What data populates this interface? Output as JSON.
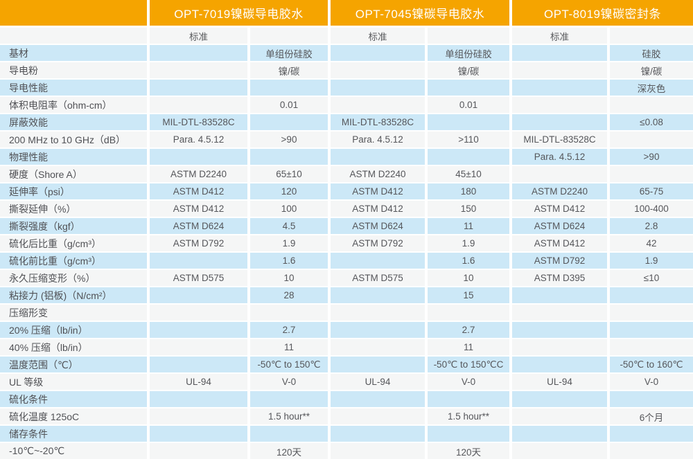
{
  "colors": {
    "header_bg": "#f5a400",
    "header_text": "#ffffff",
    "row_blue": "#cce8f7",
    "row_light": "#f5f6f6",
    "body_text": "#55565a"
  },
  "header": {
    "corner": "",
    "products": [
      "OPT-7019镍碳导电胶水",
      "OPT-7045镍碳导电胶水",
      "OPT-8019镍碳密封条"
    ],
    "subheader": [
      "标准",
      "标准",
      "标准"
    ]
  },
  "rows": [
    {
      "label": "基材",
      "cells": [
        "",
        "单组份硅胶",
        "",
        "单组份硅胶",
        "",
        "硅胶"
      ]
    },
    {
      "label": "导电粉",
      "cells": [
        "",
        "镍/碳",
        "",
        "镍/碳",
        "",
        "镍/碳"
      ]
    },
    {
      "label": "导电性能",
      "cells": [
        "",
        "",
        "",
        "",
        "",
        "深灰色"
      ]
    },
    {
      "label": "体积电阻率（ohm-cm）",
      "cells": [
        "",
        "0.01",
        "",
        "0.01",
        "",
        ""
      ]
    },
    {
      "label": "屏蔽效能",
      "cells": [
        "MIL-DTL-83528C",
        "",
        "MIL-DTL-83528C",
        "",
        "",
        "≤0.08"
      ]
    },
    {
      "label": "200 MHz to 10 GHz（dB）",
      "cells": [
        "Para. 4.5.12",
        ">90",
        "Para. 4.5.12",
        ">110",
        "MIL-DTL-83528C",
        ""
      ]
    },
    {
      "label": "物理性能",
      "cells": [
        "",
        "",
        "",
        "",
        "Para. 4.5.12",
        ">90"
      ]
    },
    {
      "label": "硬度（Shore A）",
      "cells": [
        "ASTM D2240",
        "65±10",
        "ASTM D2240",
        "45±10",
        "",
        ""
      ]
    },
    {
      "label": "延伸率（psi）",
      "cells": [
        "ASTM D412",
        "120",
        "ASTM D412",
        "180",
        "ASTM D2240",
        "65-75"
      ]
    },
    {
      "label": "撕裂延伸（%）",
      "cells": [
        "ASTM D412",
        "100",
        "ASTM D412",
        "150",
        "ASTM D412",
        "100-400"
      ]
    },
    {
      "label": "撕裂强度（kgf）",
      "cells": [
        "ASTM D624",
        "4.5",
        "ASTM D624",
        "11",
        "ASTM D624",
        "2.8"
      ]
    },
    {
      "label": "硫化后比重（g/cm³）",
      "cells": [
        "ASTM D792",
        "1.9",
        "ASTM D792",
        "1.9",
        "ASTM D412",
        "42"
      ]
    },
    {
      "label": "硫化前比重（g/cm³）",
      "cells": [
        "",
        "1.6",
        "",
        "1.6",
        "ASTM D792",
        "1.9"
      ]
    },
    {
      "label": "永久压缩变形（%）",
      "cells": [
        "ASTM D575",
        "10",
        "ASTM D575",
        "10",
        "ASTM D395",
        "≤10"
      ]
    },
    {
      "label": "粘接力 (铝板)（N/cm²）",
      "cells": [
        "",
        "28",
        "",
        "15",
        "",
        ""
      ]
    },
    {
      "label": "压缩形变",
      "cells": [
        "",
        "",
        "",
        "",
        "",
        ""
      ]
    },
    {
      "label": "20% 压缩（lb/in）",
      "cells": [
        "",
        "2.7",
        "",
        "2.7",
        "",
        ""
      ]
    },
    {
      "label": "40% 压缩（lb/in）",
      "cells": [
        "",
        "11",
        "",
        "11",
        "",
        ""
      ]
    },
    {
      "label": "温度范围（℃）",
      "cells": [
        "",
        "-50℃ to 150℃",
        "",
        "-50℃ to 150℃C",
        "",
        "-50℃ to 160℃"
      ]
    },
    {
      "label": "UL 等级",
      "cells": [
        "UL-94",
        "V-0",
        "UL-94",
        "V-0",
        "UL-94",
        "V-0"
      ]
    },
    {
      "label": "硫化条件",
      "cells": [
        "",
        "",
        "",
        "",
        "",
        ""
      ]
    },
    {
      "label": "硫化温度 125oC",
      "cells": [
        "",
        "1.5 hour**",
        "",
        "1.5 hour**",
        "",
        "6个月"
      ]
    },
    {
      "label": "储存条件",
      "cells": [
        "",
        "",
        "",
        "",
        "",
        ""
      ]
    },
    {
      "label": "-10℃~-20℃",
      "cells": [
        "",
        "120天",
        "",
        "120天",
        "",
        ""
      ]
    }
  ]
}
